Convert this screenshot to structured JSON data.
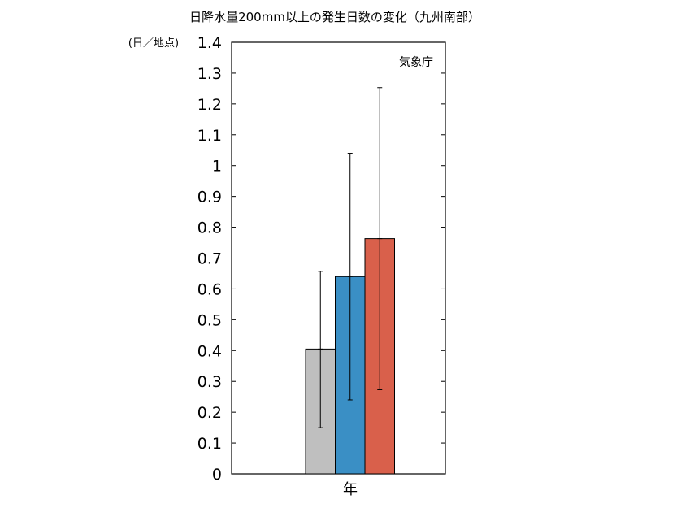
{
  "chart_data": {
    "type": "bar",
    "title": "日降水量200mm以上の発生日数の変化（九州南部）",
    "ylabel": "(日／地点)",
    "source_label": "気象庁",
    "categories": [
      "年"
    ],
    "ylim": [
      0,
      1.4
    ],
    "yticks": [
      "0",
      "0.1",
      "0.2",
      "0.3",
      "0.4",
      "0.5",
      "0.6",
      "0.7",
      "0.8",
      "0.9",
      "1",
      "1.1",
      "1.2",
      "1.3",
      "1.4"
    ],
    "grid": false,
    "series": [
      {
        "color": "#bfbfbf",
        "values": [
          0.405
        ],
        "error_low": [
          0.15
        ],
        "error_high": [
          0.657
        ]
      },
      {
        "color": "#3a8fc5",
        "values": [
          0.64
        ],
        "error_low": [
          0.24
        ],
        "error_high": [
          1.04
        ]
      },
      {
        "color": "#d9604b",
        "values": [
          0.763
        ],
        "error_low": [
          0.273
        ],
        "error_high": [
          1.253
        ]
      }
    ]
  }
}
